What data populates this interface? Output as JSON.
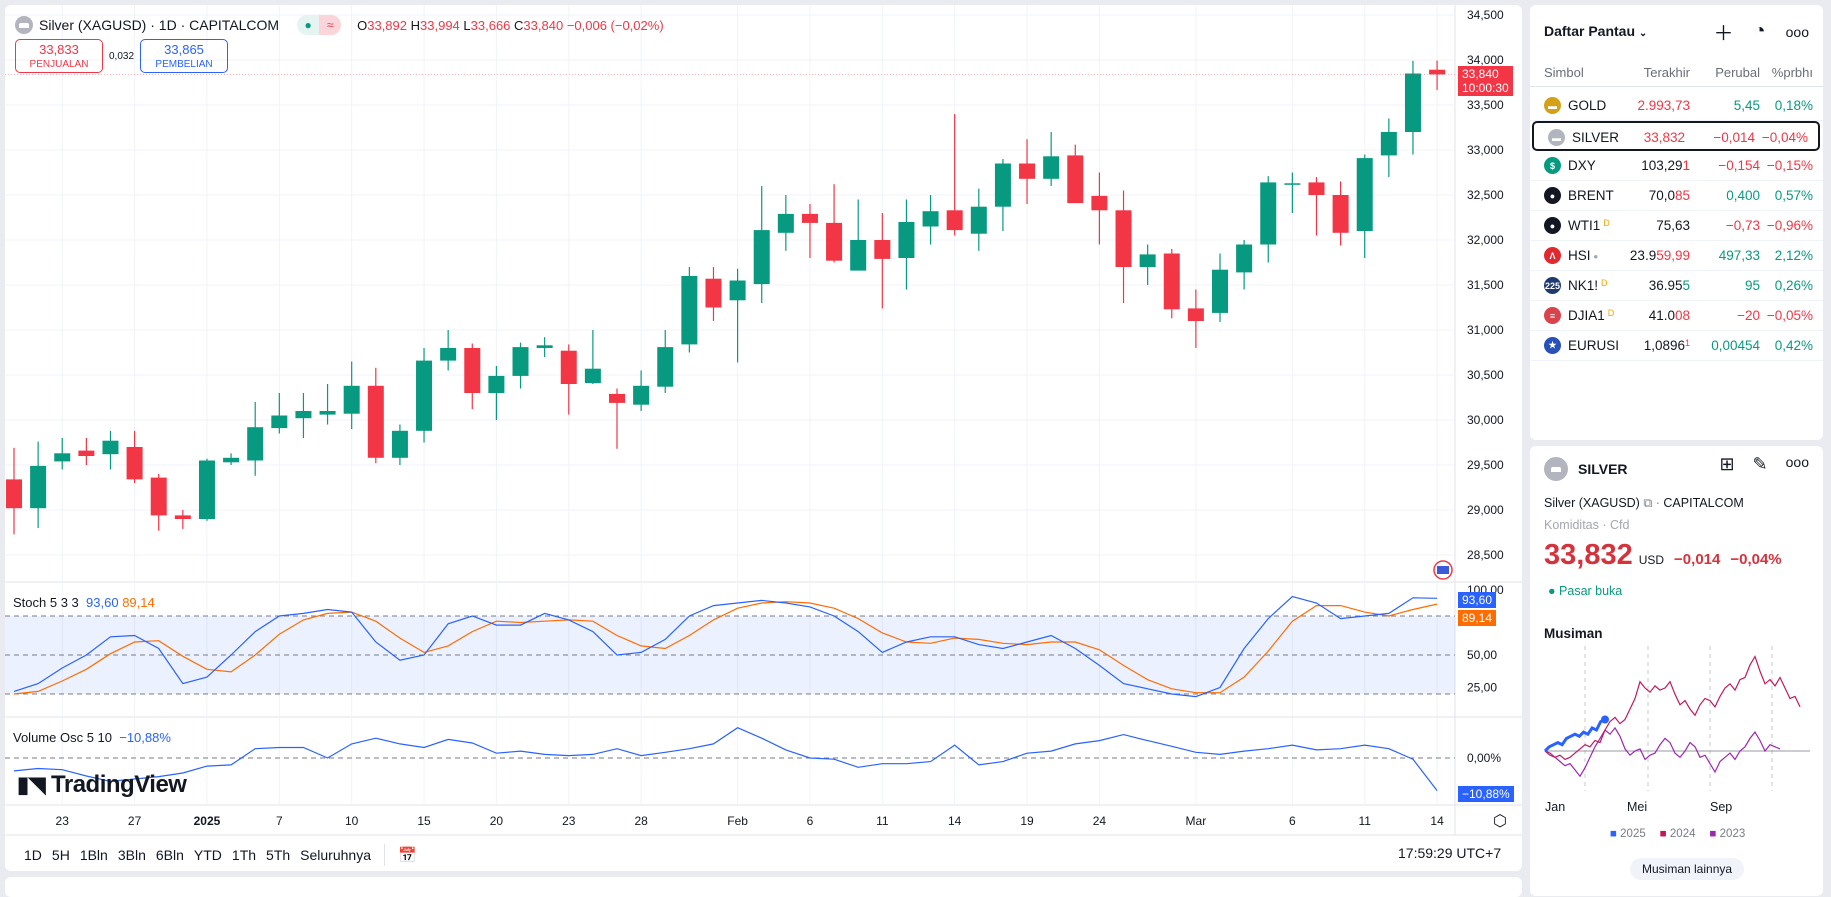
{
  "header": {
    "symbol": "Silver (XAGUSD) · 1D · CAPITALCOM",
    "open_label": "O",
    "open": "33,892",
    "high_label": "H",
    "high": "33,994",
    "low_label": "L",
    "low": "33,666",
    "close_label": "C",
    "close": "33,840",
    "change": "−0,006 (−0,02%)",
    "sell_price": "33,833",
    "sell_label": "PENJUALAN",
    "spread": "0,032",
    "buy_price": "33,865",
    "buy_label": "PEMBELIAN"
  },
  "price_axis": {
    "ticks": [
      "34,500",
      "34,000",
      "33,500",
      "33,000",
      "32,500",
      "32,000",
      "31,500",
      "31,000",
      "30,500",
      "30,000",
      "29,500",
      "29,000",
      "28,500"
    ],
    "last_price": "33,840",
    "countdown": "10:00:30"
  },
  "stoch": {
    "title": "Stoch 5 3 3",
    "k_value": "93,60",
    "d_value": "89,14",
    "ticks": [
      "100,00",
      "50,00",
      "25,00"
    ]
  },
  "volosc": {
    "title": "Volume Osc 5 10",
    "value": "−10,88%",
    "zero_tick": "0,00%"
  },
  "logo": "TradingView",
  "time_axis": [
    {
      "label": "23",
      "i": 2
    },
    {
      "label": "27",
      "i": 5
    },
    {
      "label": "2025",
      "i": 8
    },
    {
      "label": "7",
      "i": 11
    },
    {
      "label": "10",
      "i": 14
    },
    {
      "label": "15",
      "i": 17
    },
    {
      "label": "20",
      "i": 20
    },
    {
      "label": "23",
      "i": 23
    },
    {
      "label": "28",
      "i": 26
    },
    {
      "label": "Feb",
      "i": 30
    },
    {
      "label": "6",
      "i": 33
    },
    {
      "label": "11",
      "i": 36
    },
    {
      "label": "14",
      "i": 39
    },
    {
      "label": "19",
      "i": 42
    },
    {
      "label": "24",
      "i": 45
    },
    {
      "label": "Mar",
      "i": 49
    },
    {
      "label": "6",
      "i": 53
    },
    {
      "label": "11",
      "i": 56
    },
    {
      "label": "14",
      "i": 59
    }
  ],
  "toolbar": {
    "ranges": [
      "1D",
      "5H",
      "1Bln",
      "3Bln",
      "6Bln",
      "YTD",
      "1Th",
      "5Th",
      "Seluruhnya"
    ],
    "clock": "17:59:29 UTC+7"
  },
  "colors": {
    "up": "#089981",
    "down": "#f23645",
    "k": "#2962ff",
    "d": "#ff6d00"
  },
  "chart_data": {
    "type": "candlestick",
    "price_range": [
      28.5,
      34.5
    ],
    "ohlc": [
      [
        29.34,
        29.69,
        28.73,
        29.02
      ],
      [
        29.02,
        29.76,
        28.8,
        29.49
      ],
      [
        29.54,
        29.8,
        29.45,
        29.63
      ],
      [
        29.66,
        29.8,
        29.5,
        29.6
      ],
      [
        29.62,
        29.88,
        29.45,
        29.77
      ],
      [
        29.7,
        29.88,
        29.3,
        29.34
      ],
      [
        29.36,
        29.4,
        28.77,
        28.94
      ],
      [
        28.94,
        29.0,
        28.79,
        28.9
      ],
      [
        28.9,
        29.57,
        28.88,
        29.55
      ],
      [
        29.53,
        29.63,
        29.5,
        29.58
      ],
      [
        29.55,
        30.2,
        29.38,
        29.92
      ],
      [
        29.91,
        30.3,
        29.85,
        30.05
      ],
      [
        30.02,
        30.3,
        29.8,
        30.1
      ],
      [
        30.06,
        30.4,
        29.95,
        30.1
      ],
      [
        30.07,
        30.65,
        29.9,
        30.38
      ],
      [
        30.38,
        30.58,
        29.52,
        29.58
      ],
      [
        29.58,
        29.95,
        29.5,
        29.88
      ],
      [
        29.88,
        30.8,
        29.75,
        30.66
      ],
      [
        30.66,
        31.0,
        30.55,
        30.8
      ],
      [
        30.8,
        30.85,
        30.12,
        30.3
      ],
      [
        30.3,
        30.6,
        30.0,
        30.49
      ],
      [
        30.49,
        30.86,
        30.35,
        30.81
      ],
      [
        30.8,
        30.92,
        30.7,
        30.83
      ],
      [
        30.77,
        30.84,
        30.06,
        30.4
      ],
      [
        30.41,
        31.0,
        30.4,
        30.57
      ],
      [
        30.29,
        30.35,
        29.68,
        30.19
      ],
      [
        30.17,
        30.55,
        30.1,
        30.38
      ],
      [
        30.37,
        31.0,
        30.3,
        30.81
      ],
      [
        30.84,
        31.7,
        30.75,
        31.6
      ],
      [
        31.57,
        31.7,
        31.1,
        31.25
      ],
      [
        31.33,
        31.68,
        30.64,
        31.55
      ],
      [
        31.51,
        32.6,
        31.3,
        32.11
      ],
      [
        32.08,
        32.5,
        31.88,
        32.29
      ],
      [
        32.29,
        32.4,
        31.8,
        32.19
      ],
      [
        32.19,
        32.62,
        31.75,
        31.77
      ],
      [
        31.66,
        32.45,
        31.66,
        32.0
      ],
      [
        32.0,
        32.3,
        31.24,
        31.79
      ],
      [
        31.8,
        32.45,
        31.45,
        32.2
      ],
      [
        32.15,
        32.5,
        31.95,
        32.32
      ],
      [
        32.33,
        33.4,
        32.05,
        32.11
      ],
      [
        32.07,
        32.57,
        31.88,
        32.37
      ],
      [
        32.37,
        32.9,
        32.1,
        32.85
      ],
      [
        32.85,
        33.12,
        32.4,
        32.68
      ],
      [
        32.68,
        33.2,
        32.6,
        32.93
      ],
      [
        32.94,
        33.06,
        32.41,
        32.41
      ],
      [
        32.49,
        32.75,
        31.95,
        32.33
      ],
      [
        32.33,
        32.55,
        31.3,
        31.7
      ],
      [
        31.7,
        31.95,
        31.5,
        31.84
      ],
      [
        31.85,
        31.9,
        31.13,
        31.23
      ],
      [
        31.24,
        31.45,
        30.8,
        31.1
      ],
      [
        31.19,
        31.85,
        31.09,
        31.67
      ],
      [
        31.64,
        32.0,
        31.45,
        31.95
      ],
      [
        31.95,
        32.71,
        31.75,
        32.64
      ],
      [
        32.62,
        32.75,
        32.3,
        32.63
      ],
      [
        32.64,
        32.7,
        32.05,
        32.5
      ],
      [
        32.5,
        32.65,
        31.94,
        32.08
      ],
      [
        32.1,
        32.95,
        31.8,
        32.91
      ],
      [
        32.94,
        33.35,
        32.7,
        33.2
      ],
      [
        33.2,
        33.99,
        32.95,
        33.85
      ],
      [
        33.892,
        33.994,
        33.666,
        33.84
      ]
    ],
    "stoch_k": [
      22,
      28,
      40,
      50,
      64,
      65,
      55,
      28,
      33,
      50,
      68,
      80,
      82,
      85,
      83,
      60,
      46,
      50,
      74,
      80,
      73,
      73,
      82,
      77,
      68,
      50,
      52,
      62,
      80,
      88,
      90,
      92,
      90,
      87,
      80,
      68,
      52,
      60,
      64,
      64,
      58,
      55,
      60,
      65,
      55,
      42,
      28,
      24,
      20,
      18,
      25,
      55,
      78,
      95,
      90,
      78,
      80,
      82,
      94,
      93.6
    ],
    "stoch_d": [
      20,
      22,
      30,
      39,
      51,
      60,
      61,
      49,
      39,
      37,
      50,
      66,
      77,
      82,
      83,
      76,
      63,
      52,
      57,
      68,
      76,
      75,
      76,
      77,
      76,
      65,
      57,
      55,
      65,
      77,
      86,
      90,
      91,
      90,
      86,
      78,
      67,
      60,
      59,
      63,
      62,
      59,
      58,
      60,
      60,
      54,
      42,
      31,
      24,
      21,
      21,
      33,
      53,
      76,
      88,
      88,
      83,
      80,
      85,
      89.14
    ],
    "stoch_bands": [
      80,
      50,
      20
    ],
    "volume_osc": [
      -4.3,
      -3.5,
      -3.9,
      -6,
      -7.8,
      -7,
      -6.2,
      -5,
      -2.7,
      -2.3,
      3.1,
      3.5,
      3.5,
      0,
      4.7,
      6.6,
      4.7,
      3.5,
      6.2,
      5,
      1.6,
      2.3,
      1.2,
      0.8,
      1.2,
      3.1,
      0.8,
      1.9,
      3.1,
      4.7,
      10.1,
      6.6,
      2.7,
      0,
      -0.4,
      -3.1,
      -1.9,
      -1.9,
      -1.2,
      4.3,
      -2.3,
      -1.2,
      1.6,
      2.3,
      4.7,
      5.8,
      7.8,
      5.8,
      3.9,
      1.9,
      1.2,
      2.3,
      3.1,
      4.3,
      2.7,
      3.1,
      4.3,
      3.1,
      -0.4,
      -10.88
    ]
  },
  "watchlist": {
    "title": "Daftar Pantau",
    "columns": [
      "Simbol",
      "Terakhir",
      "Perubal",
      "%prbhı"
    ],
    "rows": [
      {
        "sym": "GOLD",
        "main": "",
        "tick": "2.993,73",
        "tick_dir": "red",
        "chg": "5,45",
        "pct": "0,18%",
        "dir": "green",
        "icon": "gold-bar-icon",
        "icolor": "#d4a017",
        "glyph": "▬",
        "badge": ""
      },
      {
        "sym": "SILVER",
        "main": "",
        "tick": "33,832",
        "tick_dir": "red",
        "chg": "−0,014",
        "pct": "−0,04%",
        "dir": "red",
        "icon": "silver-bar-icon",
        "icolor": "#b2b5be",
        "glyph": "▬",
        "badge": ""
      },
      {
        "sym": "DXY",
        "main": "103,29",
        "tick": "1",
        "tick_dir": "red",
        "chg": "−0,154",
        "pct": "−0,15%",
        "dir": "red",
        "icon": "dollar-icon",
        "icolor": "#089981",
        "glyph": "$",
        "badge": ""
      },
      {
        "sym": "BRENT",
        "main": "70,0",
        "tick": "85",
        "tick_dir": "red",
        "chg": "0,400",
        "pct": "0,57%",
        "dir": "green",
        "icon": "oil-drop-icon",
        "icolor": "#131722",
        "glyph": "●",
        "badge": ""
      },
      {
        "sym": "WTI1",
        "main": "75,63",
        "tick": "",
        "tick_dir": "red",
        "chg": "−0,73",
        "pct": "−0,96%",
        "dir": "red",
        "icon": "oil-drop-icon",
        "icolor": "#131722",
        "glyph": "●",
        "badge": "D"
      },
      {
        "sym": "HSI",
        "main": "23.9",
        "tick": "59,99",
        "tick_dir": "red",
        "chg": "497,33",
        "pct": "2,12%",
        "dir": "green",
        "icon": "hsi-icon",
        "icolor": "#e0282e",
        "glyph": "Λ",
        "badge": "•"
      },
      {
        "sym": "NK1!",
        "main": "36.95",
        "tick": "5",
        "tick_dir": "green",
        "chg": "95",
        "pct": "0,26%",
        "dir": "green",
        "icon": "nikkei-225-icon",
        "icolor": "#1e3a6e",
        "glyph": "225",
        "badge": "D"
      },
      {
        "sym": "DJIA1",
        "main": "41.0",
        "tick": "08",
        "tick_dir": "red",
        "chg": "−20",
        "pct": "−0,05%",
        "dir": "red",
        "icon": "us-flag-icon",
        "icolor": "#d9434c",
        "glyph": "≡",
        "badge": "D"
      },
      {
        "sym": "EURUSI",
        "main": "1,0896",
        "tick": "1",
        "tick_dir": "red",
        "chg": "0,00454",
        "pct": "0,42%",
        "dir": "green",
        "icon": "eur-usd-flag-icon",
        "icolor": "#2750b8",
        "glyph": "★",
        "badge": ""
      }
    ]
  },
  "detail": {
    "symbol": "SILVER",
    "full_name": "Silver (XAGUSD)",
    "exchange": "CAPITALCOM",
    "category": "Komiditas",
    "type": "Cfd",
    "price": "33,832",
    "currency": "USD",
    "change": "−0,014",
    "change_pct": "−0,04%",
    "market_status": "Pasar buka",
    "seasonal_title": "Musiman",
    "months": [
      "Jan",
      "Mei",
      "Sep"
    ],
    "legend": [
      "2025",
      "2024",
      "2023"
    ],
    "more_button": "Musiman lainnya"
  },
  "seasonal_data": {
    "type": "line",
    "unit": "%",
    "series": [
      {
        "name": "2025",
        "color": "#2962ff",
        "values": [
          0,
          2,
          3,
          4,
          3,
          6,
          7,
          8,
          7,
          9,
          8,
          11,
          10,
          14,
          15
        ]
      },
      {
        "name": "2024",
        "color": "#c2185b",
        "values": [
          0,
          -1,
          -3,
          -2,
          -4,
          -3,
          -1,
          1,
          3,
          2,
          5,
          4,
          10,
          14,
          16,
          13,
          15,
          20,
          25,
          33,
          30,
          28,
          31,
          29,
          30,
          33,
          27,
          22,
          24,
          20,
          17,
          22,
          25,
          24,
          21,
          26,
          30,
          32,
          29,
          34,
          35,
          41,
          45,
          38,
          32,
          34,
          31,
          35,
          30,
          25,
          26,
          21
        ]
      },
      {
        "name": "2023",
        "color": "#9c27b0",
        "values": [
          0,
          -2,
          -3,
          -5,
          -7,
          -6,
          -9,
          -12,
          -8,
          -3,
          2,
          6,
          10,
          8,
          11,
          7,
          1,
          -2,
          0,
          1,
          -4,
          -2,
          -1,
          3,
          6,
          4,
          -1,
          -3,
          0,
          4,
          2,
          -3,
          -2,
          -6,
          -10,
          -5,
          -3,
          -1,
          -4,
          0,
          2,
          6,
          9,
          5,
          0,
          3,
          2,
          1
        ]
      }
    ]
  }
}
